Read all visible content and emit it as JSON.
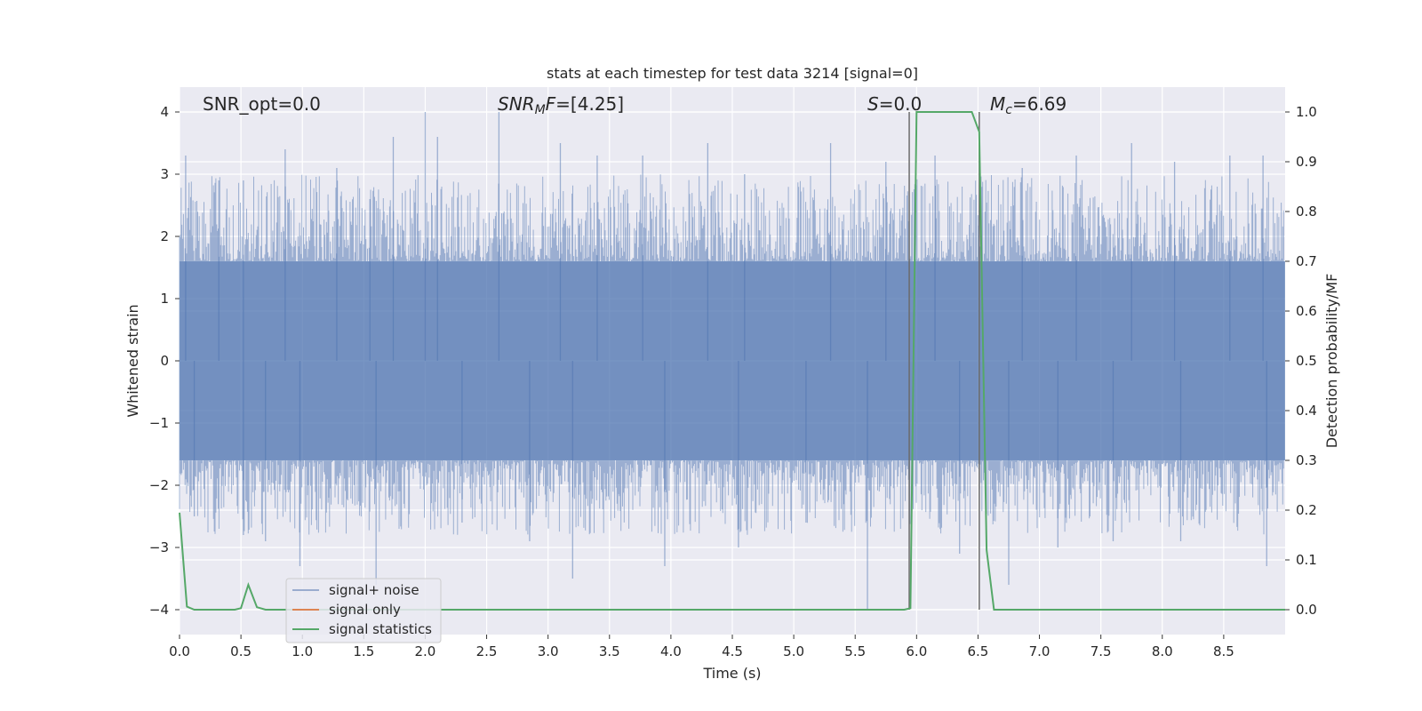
{
  "chart_data": {
    "type": "line",
    "title": "stats at each timestep for test data 3214 [signal=0]",
    "xlabel": "Time (s)",
    "ylabel_left": "Whitened strain",
    "ylabel_right": "Detection probability/MF",
    "xlim": [
      0,
      9.0
    ],
    "ylim_left": [
      -4.4,
      4.4
    ],
    "ylim_right": [
      -0.05,
      1.05
    ],
    "xticks": [
      "0.0",
      "0.5",
      "1.0",
      "1.5",
      "2.0",
      "2.5",
      "3.0",
      "3.5",
      "4.0",
      "4.5",
      "5.0",
      "5.5",
      "6.0",
      "6.5",
      "7.0",
      "7.5",
      "8.0",
      "8.5"
    ],
    "yticks_left": [
      "4",
      "3",
      "2",
      "1",
      "0",
      "−1",
      "−2",
      "−3",
      "−4"
    ],
    "yticks_left_values": [
      4,
      3,
      2,
      1,
      0,
      -1,
      -2,
      -3,
      -4
    ],
    "yticks_right": [
      "1.0",
      "0.9",
      "0.8",
      "0.7",
      "0.6",
      "0.5",
      "0.4",
      "0.3",
      "0.2",
      "0.1",
      "0.0"
    ],
    "yticks_right_values": [
      1.0,
      0.9,
      0.8,
      0.7,
      0.6,
      0.5,
      0.4,
      0.3,
      0.2,
      0.1,
      0.0
    ],
    "grid": true,
    "legend_placement": "lower-left",
    "annotations": {
      "snr_opt": "SNR_opt=0.0",
      "snr_mf": "SNR_MF=[4.25]",
      "s_value": "S=0.0",
      "mc_value": "M_c=6.69"
    },
    "vlines": [
      5.94,
      6.51
    ],
    "noise_envelope": {
      "amplitude": 1.6,
      "peak_times": [
        0.05,
        0.32,
        0.52,
        0.86,
        1.28,
        1.55,
        1.74,
        2.0,
        2.1,
        2.6,
        3.1,
        3.4,
        3.77,
        4.3,
        4.6,
        5.3,
        5.75,
        6.15,
        6.86,
        7.3,
        7.75,
        8.1,
        8.55,
        8.82
      ],
      "peak_values": [
        3.3,
        2.9,
        2.9,
        3.4,
        3.1,
        2.6,
        3.6,
        4.0,
        3.6,
        4.0,
        3.5,
        3.3,
        3.3,
        3.5,
        3.0,
        3.5,
        3.2,
        3.3,
        3.1,
        3.3,
        3.5,
        3.2,
        3.3,
        3.3
      ],
      "trough_times": [
        0.12,
        0.52,
        0.7,
        0.98,
        1.6,
        2.3,
        2.85,
        3.2,
        3.95,
        4.55,
        5.1,
        5.6,
        6.35,
        6.75,
        7.15,
        7.6,
        8.15,
        8.85
      ],
      "trough_values": [
        -2.5,
        -2.8,
        -2.9,
        -3.3,
        -3.6,
        -2.6,
        -2.9,
        -3.5,
        -3.3,
        -3.0,
        -2.6,
        -4.0,
        -3.1,
        -3.6,
        -3.0,
        -2.9,
        -2.9,
        -3.3
      ]
    },
    "series": [
      {
        "name": "signal+ noise",
        "color": "#4c72b0",
        "opacity": 0.5
      },
      {
        "name": "signal only",
        "color": "#dd8452",
        "x": [],
        "y": []
      },
      {
        "name": "signal statistics",
        "color": "#55a868",
        "axis": "right",
        "x": [
          0.0,
          0.06,
          0.12,
          0.3,
          0.45,
          0.5,
          0.56,
          0.63,
          0.7,
          1.0,
          2.0,
          3.0,
          4.0,
          5.0,
          5.9,
          5.95,
          6.0,
          6.3,
          6.45,
          6.51,
          6.57,
          6.63,
          7.0,
          8.0,
          9.0
        ],
        "y": [
          0.195,
          0.006,
          0.0,
          0.0,
          0.0,
          0.003,
          0.05,
          0.005,
          0.0,
          0.0,
          0.0,
          0.0,
          0.0,
          0.0,
          0.0,
          0.003,
          1.0,
          1.0,
          1.0,
          0.96,
          0.12,
          0.0,
          0.0,
          0.0,
          0.0
        ]
      }
    ]
  }
}
